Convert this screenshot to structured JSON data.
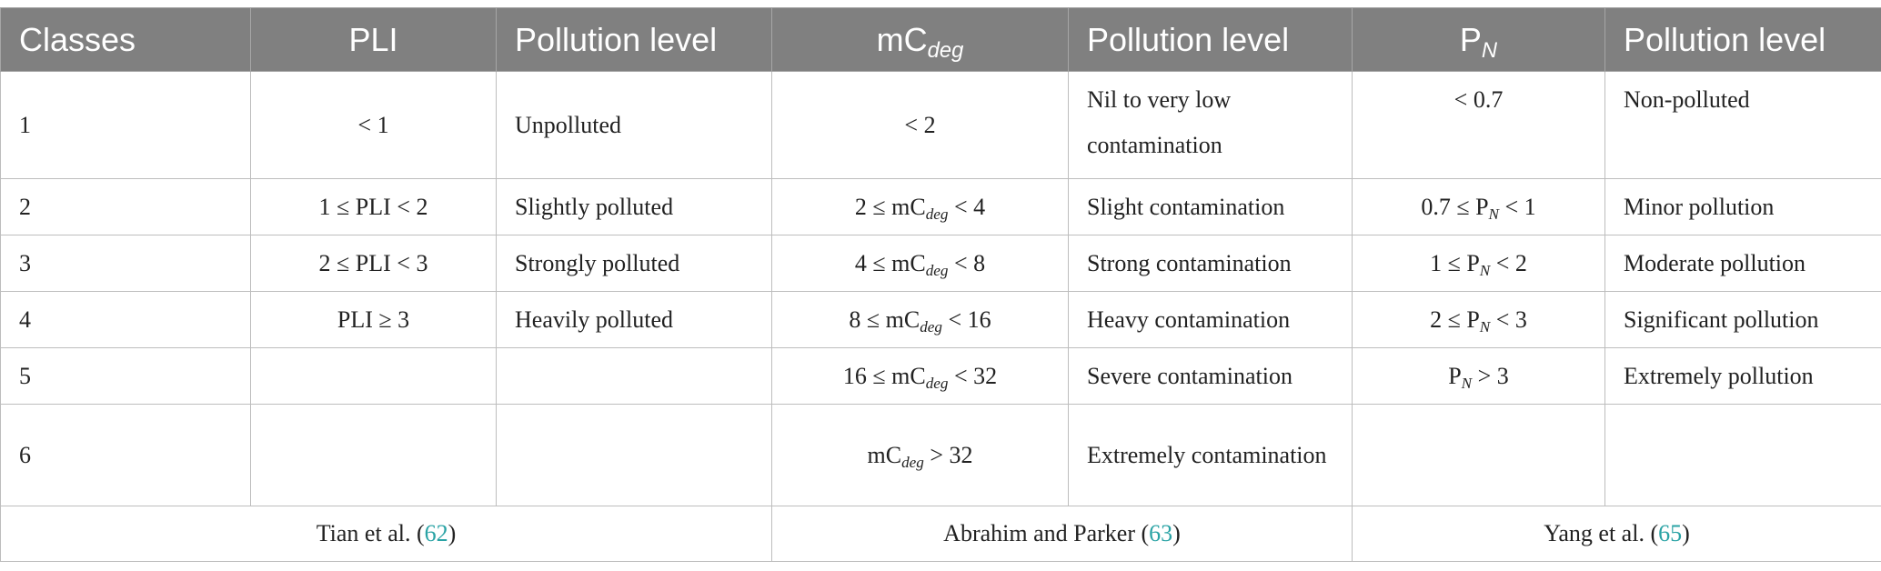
{
  "table": {
    "headers": {
      "classes": "Classes",
      "pli": "PLI",
      "pollution_level_1": "Pollution level",
      "mc_deg": {
        "base": "mC",
        "sub": "deg"
      },
      "pollution_level_2": "Pollution level",
      "pn": {
        "base": "P",
        "sub": "N"
      },
      "pollution_level_3": "Pollution level"
    },
    "rows": [
      {
        "class": "1",
        "pli": "< 1",
        "pli_level": "Unpolluted",
        "mcdeg": {
          "pre": "< 2",
          "sub": "",
          "post": ""
        },
        "mcdeg_level": "Nil to very low contamination",
        "pn": {
          "pre": "< 0.7",
          "sub": "",
          "post": ""
        },
        "pn_level": "Non-polluted"
      },
      {
        "class": "2",
        "pli": "1 ≤ PLI < 2",
        "pli_level": "Slightly polluted",
        "mcdeg": {
          "pre": "2 ≤ mC",
          "sub": "deg",
          "post": " < 4"
        },
        "mcdeg_level": "Slight contamination",
        "pn": {
          "pre": "0.7 ≤ P",
          "sub": "N",
          "post": " < 1"
        },
        "pn_level": "Minor pollution"
      },
      {
        "class": "3",
        "pli": "2 ≤ PLI < 3",
        "pli_level": "Strongly polluted",
        "mcdeg": {
          "pre": "4 ≤ mC",
          "sub": "deg",
          "post": " < 8"
        },
        "mcdeg_level": "Strong contamination",
        "pn": {
          "pre": "1 ≤ P",
          "sub": "N",
          "post": " < 2"
        },
        "pn_level": "Moderate pollution"
      },
      {
        "class": "4",
        "pli": "PLI ≥ 3",
        "pli_level": "Heavily polluted",
        "mcdeg": {
          "pre": "8 ≤ mC",
          "sub": "deg",
          "post": " < 16"
        },
        "mcdeg_level": "Heavy contamination",
        "pn": {
          "pre": "2 ≤ P",
          "sub": "N",
          "post": " < 3"
        },
        "pn_level": "Significant pollution"
      },
      {
        "class": "5",
        "pli": "",
        "pli_level": "",
        "mcdeg": {
          "pre": "16 ≤ mC",
          "sub": "deg",
          "post": " < 32"
        },
        "mcdeg_level": "Severe contamination",
        "pn": {
          "pre": "P",
          "sub": "N",
          "post": " > 3"
        },
        "pn_level": "Extremely pollution"
      },
      {
        "class": "6",
        "pli": "",
        "pli_level": "",
        "mcdeg": {
          "pre": "mC",
          "sub": "deg",
          "post": " > 32"
        },
        "mcdeg_level": "Extremely contamination",
        "pn": {
          "pre": "",
          "sub": "",
          "post": ""
        },
        "pn_level": ""
      }
    ],
    "footer": {
      "ref1": {
        "text": "Tian et al. (",
        "num": "62",
        "close": ")"
      },
      "ref2": {
        "text": "Abrahim and Parker (",
        "num": "63",
        "close": ")"
      },
      "ref3": {
        "text": "Yang et al. (",
        "num": "65",
        "close": ")"
      }
    },
    "colors": {
      "header_bg": "#808080",
      "header_text": "#ffffff",
      "link": "#2aa3a5"
    }
  }
}
